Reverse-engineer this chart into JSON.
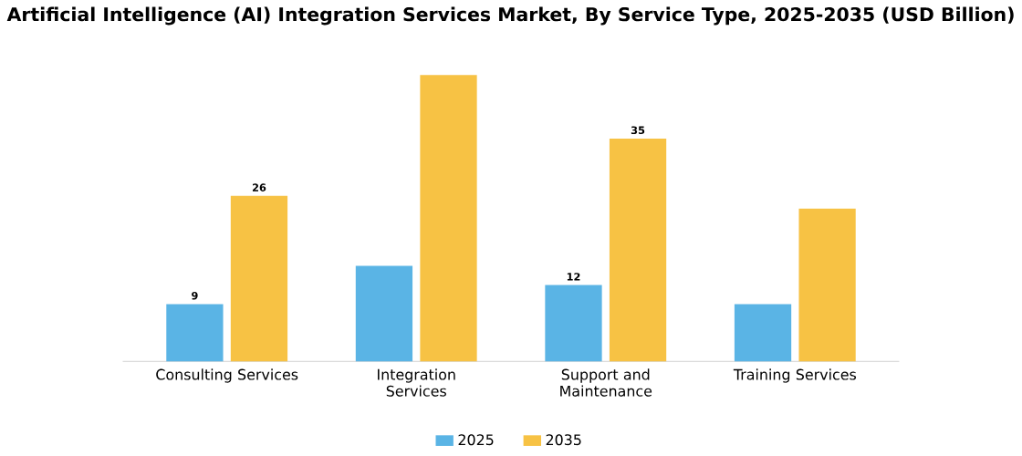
{
  "chart_data": {
    "type": "bar",
    "title": "Artificial Intelligence (AI) Integration Services Market, By Service Type, 2025-2035 (USD Billion)",
    "categories": [
      "Consulting Services",
      "Integration Services",
      "Support and Maintenance",
      "Training Services"
    ],
    "series": [
      {
        "name": "2025",
        "color": "#5ab4e5",
        "values": [
          9,
          15,
          12,
          9
        ],
        "value_labels": [
          "9",
          null,
          "12",
          null
        ]
      },
      {
        "name": "2035",
        "color": "#f7c244",
        "values": [
          26,
          45,
          35,
          24
        ],
        "value_labels": [
          "26",
          null,
          "35",
          null
        ]
      }
    ],
    "legend": "bottom"
  }
}
